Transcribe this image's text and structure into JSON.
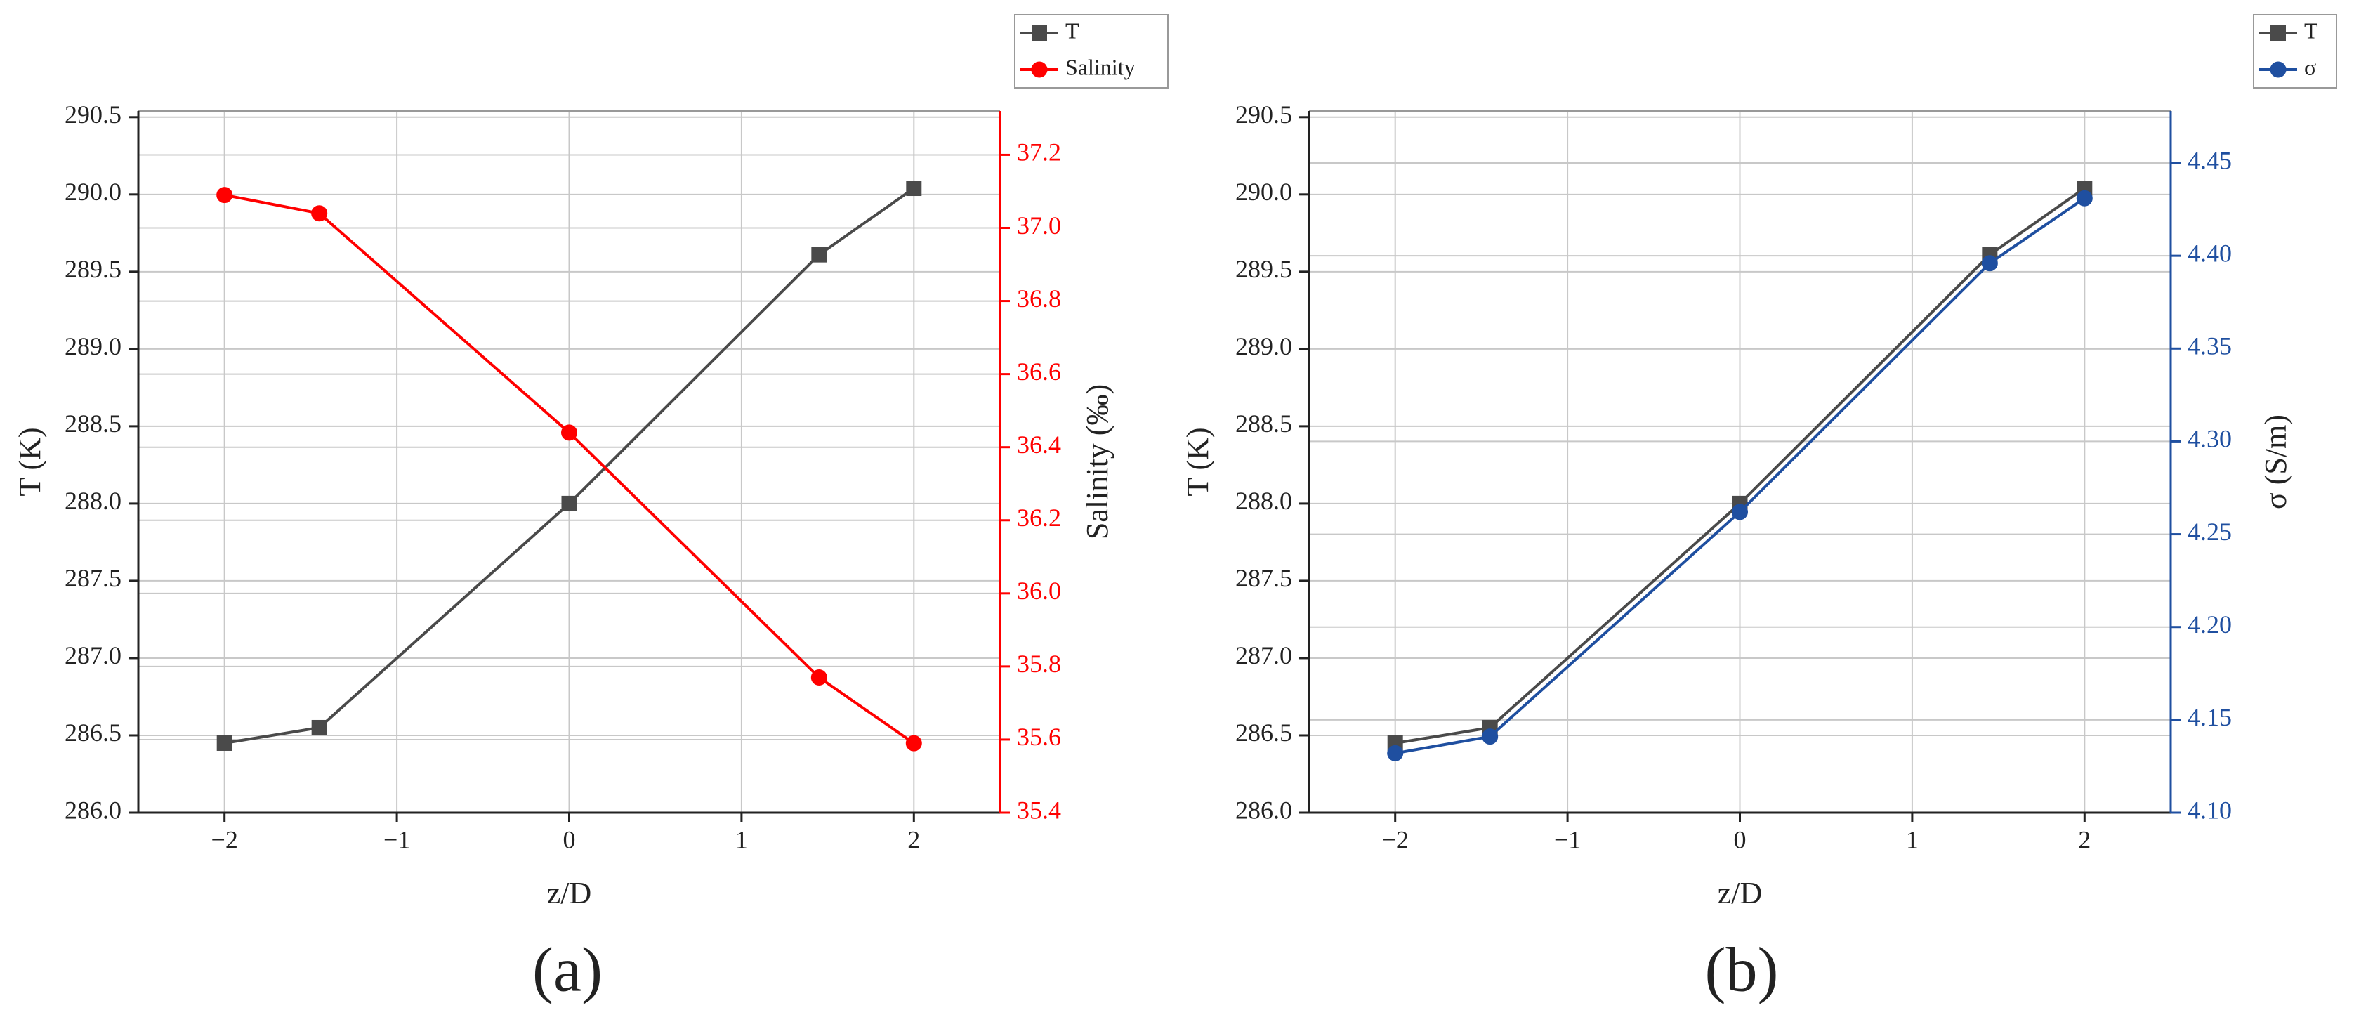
{
  "chart_data": [
    {
      "type": "line",
      "caption": "(a)",
      "xlabel": "z/D",
      "ylabel": "T (K)",
      "y2label": "Salinity (‰)",
      "x": [
        -2,
        -1.45,
        0,
        1.45,
        2
      ],
      "xlim": [
        -2.5,
        2.5
      ],
      "xticks": [
        {
          "value": -2,
          "label": "−2"
        },
        {
          "value": -1,
          "label": "−1"
        },
        0,
        1,
        2
      ],
      "ylim": [
        286,
        290.54
      ],
      "yticks": [
        {
          "value": 286,
          "label": "286.0"
        },
        286.5,
        {
          "value": 287,
          "label": "287.0"
        },
        287.5,
        {
          "value": 288,
          "label": "288.0"
        },
        288.5,
        {
          "value": 289,
          "label": "289.0"
        },
        289.5,
        {
          "value": 290,
          "label": "290.0"
        },
        290.5
      ],
      "y2lim": [
        35.4,
        37.32
      ],
      "y2ticks": [
        35.4,
        35.6,
        35.8,
        {
          "value": 36,
          "label": "36.0"
        },
        36.2,
        36.4,
        36.6,
        36.8,
        {
          "value": 37,
          "label": "37.0"
        },
        37.2
      ],
      "grid": true,
      "legend": "top-right",
      "series": [
        {
          "name": "T",
          "color": "#4a4a4a",
          "marker": "square",
          "values": [
            286.45,
            286.55,
            288.0,
            289.61,
            290.04
          ]
        },
        {
          "name": "Salinity",
          "color": "#ff0000",
          "marker": "circle",
          "axis": "y2",
          "values": [
            37.09,
            37.04,
            36.44,
            35.77,
            35.59
          ]
        }
      ]
    },
    {
      "type": "line",
      "caption": "(b)",
      "xlabel": "z/D",
      "ylabel": "T (K)",
      "y2label": "σ (S/m)",
      "x": [
        -2,
        -1.45,
        0,
        1.45,
        2
      ],
      "xlim": [
        -2.5,
        2.5
      ],
      "xticks": [
        {
          "value": -2,
          "label": "−2"
        },
        {
          "value": -1,
          "label": "−1"
        },
        0,
        1,
        2
      ],
      "ylim": [
        286,
        290.54
      ],
      "yticks": [
        {
          "value": 286,
          "label": "286.0"
        },
        286.5,
        {
          "value": 287,
          "label": "287.0"
        },
        287.5,
        {
          "value": 288,
          "label": "288.0"
        },
        288.5,
        {
          "value": 289,
          "label": "289.0"
        },
        289.5,
        {
          "value": 290,
          "label": "290.0"
        },
        290.5
      ],
      "y2lim": [
        4.1,
        4.478
      ],
      "y2ticks": [
        {
          "value": 4.1,
          "label": "4.10"
        },
        4.15,
        {
          "value": 4.2,
          "label": "4.20"
        },
        4.25,
        {
          "value": 4.3,
          "label": "4.30"
        },
        4.35,
        {
          "value": 4.4,
          "label": "4.40"
        },
        4.45
      ],
      "grid": true,
      "legend": "top-right",
      "series": [
        {
          "name": "T",
          "color": "#4a4a4a",
          "marker": "square",
          "values": [
            286.45,
            286.55,
            288.0,
            289.61,
            290.04
          ]
        },
        {
          "name": "σ",
          "color": "#1f4fa0",
          "marker": "circle",
          "axis": "y2",
          "values": [
            4.132,
            4.141,
            4.262,
            4.396,
            4.431
          ]
        }
      ]
    }
  ]
}
